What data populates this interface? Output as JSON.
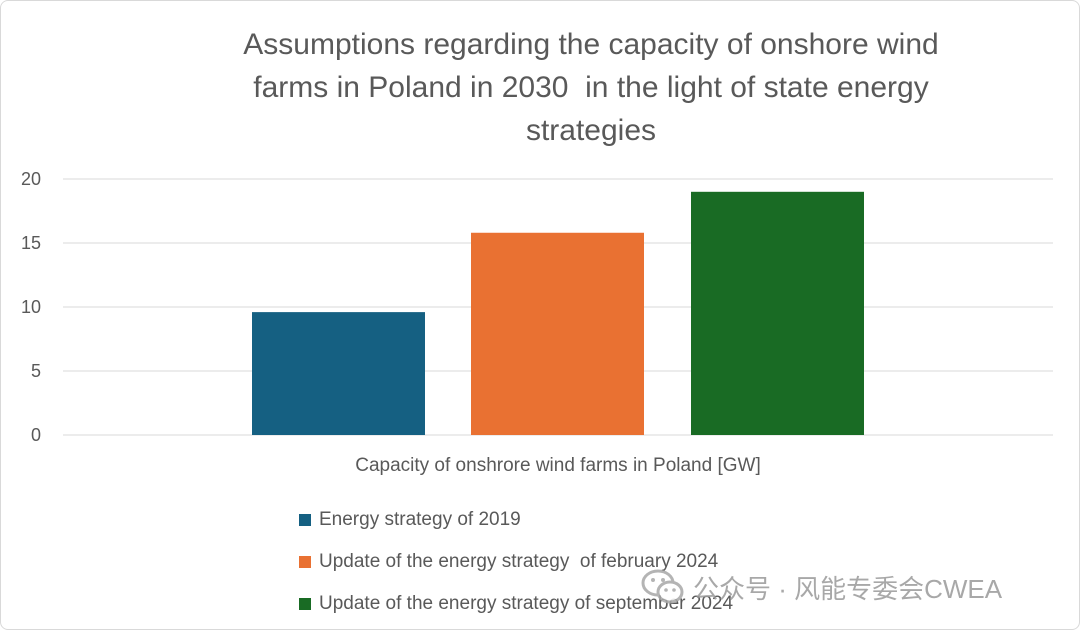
{
  "colors": {
    "series_2019": "#156082",
    "series_feb_2024": "#e97132",
    "series_sep_2024": "#196b24",
    "gridline": "#d9d9d9",
    "text": "#595959"
  },
  "chart_data": {
    "type": "bar",
    "title": "Assumptions regarding the capacity of onshore wind farms in Poland in 2030  in the light of state energy strategies",
    "xlabel": "Capacity of onshrore wind farms in Poland [GW]",
    "ylabel": "",
    "ylim": [
      0,
      20
    ],
    "yticks": [
      0,
      5,
      10,
      15,
      20
    ],
    "grid": true,
    "legend_position": "bottom",
    "categories": [
      "Capacity of onshrore wind farms in Poland [GW]"
    ],
    "series": [
      {
        "name": "Energy strategy of 2019",
        "values": [
          9.6
        ],
        "color": "#156082"
      },
      {
        "name": "Update of the energy strategy  of february 2024",
        "values": [
          15.8
        ],
        "color": "#e97132"
      },
      {
        "name": "Update of the energy strategy of september 2024",
        "values": [
          19.0
        ],
        "color": "#196b24"
      }
    ]
  },
  "watermark": {
    "icon": "wechat-icon",
    "text": "公众号 · 风能专委会CWEA"
  }
}
